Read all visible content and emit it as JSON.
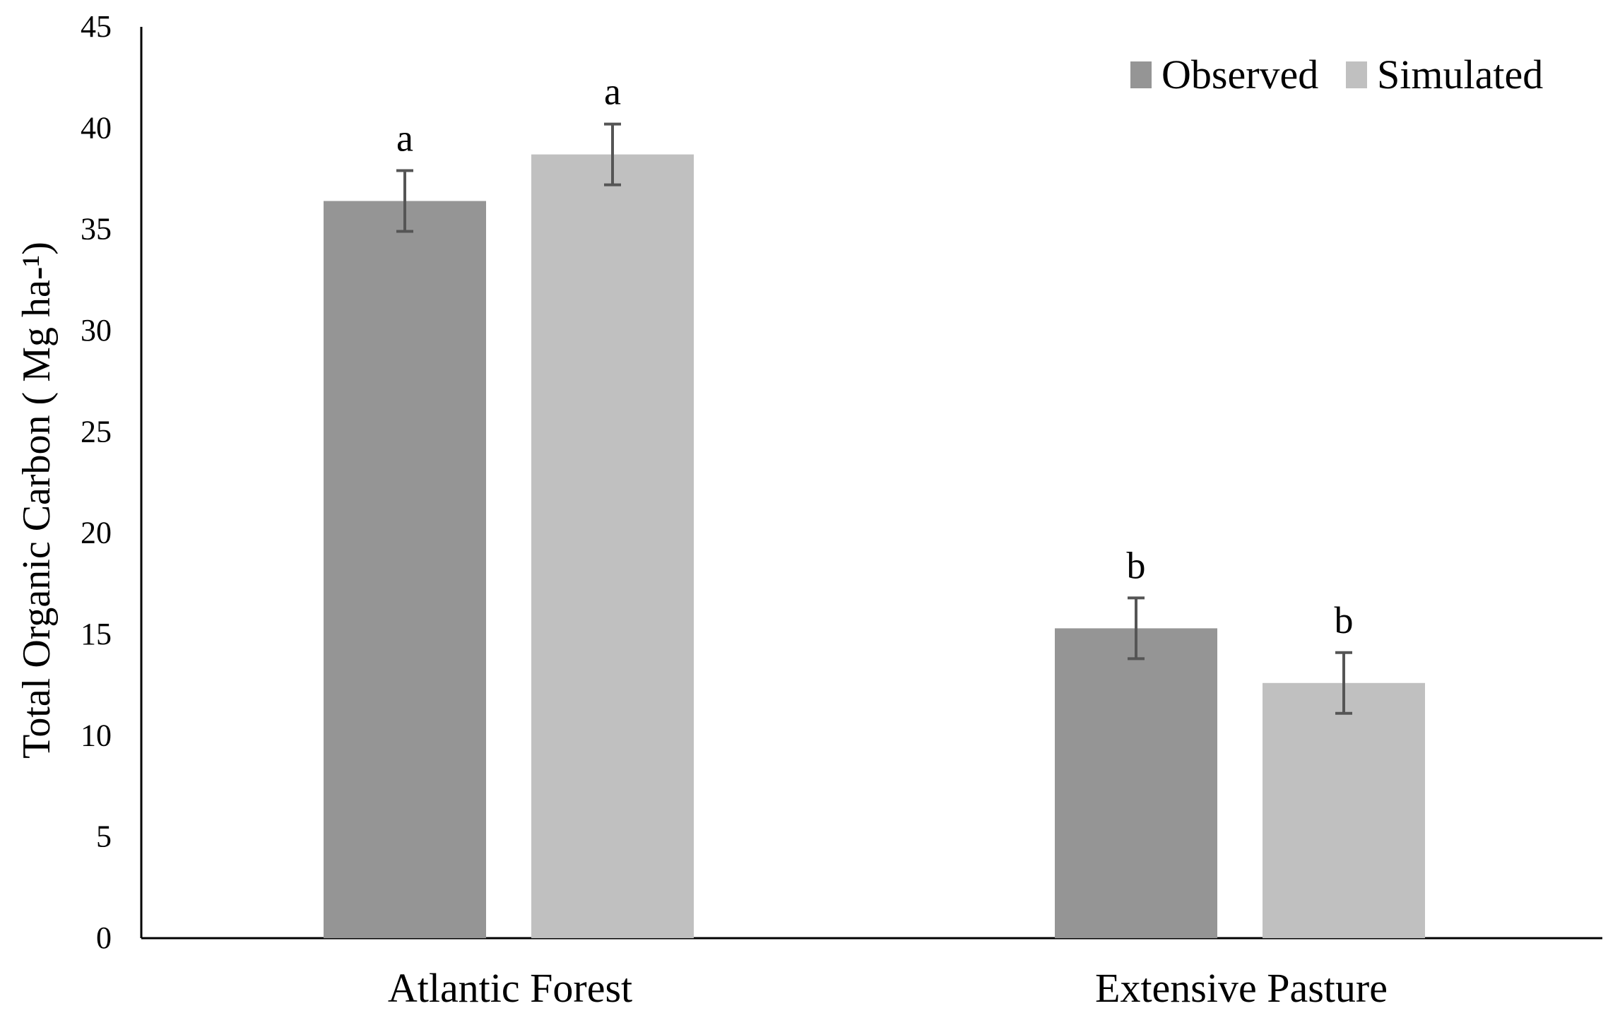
{
  "chart_data": {
    "type": "bar",
    "title": "",
    "xlabel": "",
    "ylabel": "Total  Organic Carbon ( Mg ha-¹)",
    "ylim": [
      0,
      45
    ],
    "yticks": [
      0,
      5,
      10,
      15,
      20,
      25,
      30,
      35,
      40,
      45
    ],
    "grid": false,
    "legend_position": "top-right",
    "categories": [
      "Atlantic Forest",
      "Extensive Pasture"
    ],
    "series": [
      {
        "name": "Observed",
        "color": "#959595",
        "values": [
          36.4,
          15.3
        ],
        "error": [
          1.5,
          1.5
        ],
        "significance": [
          "a",
          "b"
        ]
      },
      {
        "name": "Simulated",
        "color": "#c0c0c0",
        "values": [
          38.7,
          12.6
        ],
        "error": [
          1.5,
          1.5
        ],
        "significance": [
          "a",
          "b"
        ]
      }
    ],
    "error_bar_color": "#555555"
  }
}
